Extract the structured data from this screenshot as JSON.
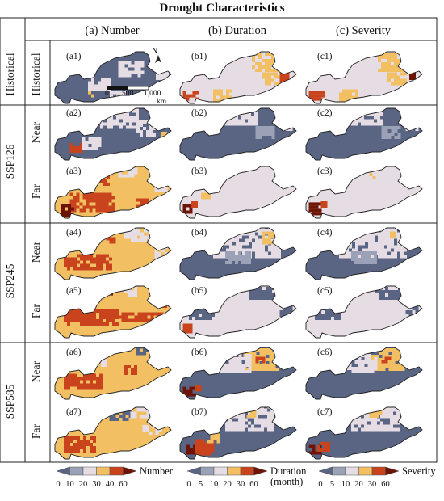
{
  "title": "Drought Characteristics",
  "columns": [
    "(a) Number",
    "(b) Duration",
    "(c) Severity"
  ],
  "scenarios": [
    "Historical",
    "SSP126",
    "SSP245",
    "SSP585"
  ],
  "periods": [
    "Historical",
    "Near",
    "Far",
    "Near",
    "Far",
    "Near",
    "Far"
  ],
  "panels": [
    [
      "(a1)",
      "(b1)",
      "(c1)"
    ],
    [
      "(a2)",
      "(b2)",
      "(c2)"
    ],
    [
      "(a3)",
      "(b3)",
      "(c3)"
    ],
    [
      "(a4)",
      "(b4)",
      "(c4)"
    ],
    [
      "(a5)",
      "(b5)",
      "(c5)"
    ],
    [
      "(a6)",
      "(b6)",
      "(c6)"
    ],
    [
      "(a7)",
      "(b7)",
      "(c7)"
    ]
  ],
  "map_overlays": {
    "north_label": "N",
    "scale_ticks": [
      "0",
      "500",
      "1,000"
    ],
    "scale_unit": "km"
  },
  "legends": [
    {
      "title": "Number",
      "ticks": [
        "0",
        "10",
        "20",
        "30",
        "40",
        "60"
      ],
      "colors": [
        "#5a6584",
        "#9ba1b6",
        "#e6dde4",
        "#f2c063",
        "#c9431d",
        "#6e1406"
      ]
    },
    {
      "title": "Duration\n(month)",
      "ticks": [
        "0",
        "5",
        "10",
        "20",
        "30",
        "60"
      ],
      "colors": [
        "#5a6584",
        "#9ba1b6",
        "#e6dde4",
        "#f2c063",
        "#c9431d",
        "#6e1406"
      ]
    },
    {
      "title": "Severity",
      "ticks": [
        "0",
        "5",
        "10",
        "20",
        "30",
        "60"
      ],
      "colors": [
        "#5a6584",
        "#9ba1b6",
        "#e6dde4",
        "#f2c063",
        "#c9431d",
        "#6e1406"
      ]
    }
  ],
  "colors": {
    "class_0": "#5a6584",
    "class_1": "#9ba1b6",
    "class_2": "#e6dde4",
    "class_3": "#f2c063",
    "class_4": "#c9431d",
    "class_5": "#6e1406"
  },
  "maps": [
    [
      {
        "base": 0,
        "patches": [
          [
            2,
            0.55,
            0.25,
            0.2,
            0.25
          ],
          [
            2,
            0.3,
            0.55,
            0.18,
            0.2
          ],
          [
            2,
            0.48,
            0.78,
            0.12,
            0.12
          ],
          [
            3,
            0.3,
            0.78,
            0.05,
            0.1
          ],
          [
            2,
            0.86,
            0.3,
            0.1,
            0.25
          ]
        ]
      },
      {
        "base": 2,
        "patches": [
          [
            3,
            0.62,
            0.1,
            0.22,
            0.3
          ],
          [
            3,
            0.7,
            0.45,
            0.15,
            0.2
          ],
          [
            3,
            0.3,
            0.75,
            0.15,
            0.18
          ],
          [
            4,
            0.05,
            0.78,
            0.12,
            0.12
          ],
          [
            4,
            0.85,
            0.35,
            0.06,
            0.25
          ]
        ]
      },
      {
        "base": 2,
        "patches": [
          [
            3,
            0.62,
            0.1,
            0.22,
            0.3
          ],
          [
            3,
            0.7,
            0.45,
            0.15,
            0.2
          ],
          [
            3,
            0.3,
            0.75,
            0.15,
            0.18
          ],
          [
            4,
            0.05,
            0.78,
            0.12,
            0.12
          ],
          [
            5,
            0.88,
            0.3,
            0.05,
            0.25
          ],
          [
            4,
            0.85,
            0.1,
            0.06,
            0.2
          ]
        ]
      }
    ],
    [
      {
        "base": 0,
        "patches": [
          [
            2,
            0.4,
            0.05,
            0.3,
            0.4
          ],
          [
            2,
            0.7,
            0.3,
            0.15,
            0.25
          ],
          [
            3,
            0.85,
            0.2,
            0.1,
            0.15
          ],
          [
            4,
            0.15,
            0.7,
            0.1,
            0.15
          ],
          [
            2,
            0.25,
            0.6,
            0.15,
            0.2
          ],
          [
            3,
            0.9,
            0.5,
            0.05,
            0.1
          ]
        ]
      },
      {
        "base": 0,
        "patches": [
          [
            2,
            0.4,
            0.05,
            0.25,
            0.3
          ],
          [
            2,
            0.85,
            0.2,
            0.1,
            0.25
          ],
          [
            1,
            0.65,
            0.4,
            0.15,
            0.2
          ]
        ]
      },
      {
        "base": 0,
        "patches": [
          [
            2,
            0.4,
            0.05,
            0.25,
            0.3
          ],
          [
            2,
            0.85,
            0.2,
            0.1,
            0.25
          ],
          [
            1,
            0.65,
            0.4,
            0.15,
            0.2
          ]
        ]
      }
    ],
    [
      {
        "base": 3,
        "patches": [
          [
            4,
            0.15,
            0.55,
            0.35,
            0.3
          ],
          [
            5,
            0.08,
            0.75,
            0.1,
            0.18
          ],
          [
            4,
            0.4,
            0.2,
            0.08,
            0.2
          ],
          [
            2,
            0.55,
            0.05,
            0.15,
            0.2
          ],
          [
            4,
            0.7,
            0.65,
            0.15,
            0.15
          ],
          [
            2,
            0.85,
            0.3,
            0.1,
            0.2
          ]
        ]
      },
      {
        "base": 2,
        "patches": [
          [
            5,
            0.05,
            0.75,
            0.08,
            0.15
          ],
          [
            4,
            0.12,
            0.7,
            0.05,
            0.1
          ],
          [
            3,
            0.2,
            0.55,
            0.08,
            0.1
          ]
        ]
      },
      {
        "base": 2,
        "patches": [
          [
            5,
            0.05,
            0.72,
            0.1,
            0.18
          ],
          [
            4,
            0.15,
            0.7,
            0.05,
            0.1
          ],
          [
            3,
            0.55,
            0.2,
            0.05,
            0.08
          ]
        ]
      }
    ],
    [
      {
        "base": 3,
        "patches": [
          [
            4,
            0.1,
            0.55,
            0.4,
            0.25
          ],
          [
            2,
            0.6,
            0.05,
            0.2,
            0.25
          ],
          [
            4,
            0.45,
            0.25,
            0.06,
            0.1
          ],
          [
            2,
            0.85,
            0.4,
            0.1,
            0.2
          ]
        ]
      },
      {
        "base": 0,
        "patches": [
          [
            2,
            0.3,
            0.05,
            0.55,
            0.55
          ],
          [
            3,
            0.7,
            0.15,
            0.15,
            0.2
          ],
          [
            1,
            0.4,
            0.5,
            0.2,
            0.2
          ]
        ]
      },
      {
        "base": 0,
        "patches": [
          [
            2,
            0.3,
            0.05,
            0.55,
            0.55
          ],
          [
            3,
            0.72,
            0.15,
            0.05,
            0.1
          ],
          [
            1,
            0.4,
            0.5,
            0.2,
            0.2
          ]
        ]
      }
    ],
    [
      {
        "base": 3,
        "patches": [
          [
            4,
            0.1,
            0.5,
            0.45,
            0.25
          ],
          [
            4,
            0.55,
            0.55,
            0.35,
            0.15
          ],
          [
            5,
            0.4,
            0.08,
            0.1,
            0.12
          ],
          [
            2,
            0.6,
            0.1,
            0.1,
            0.15
          ],
          [
            4,
            0.9,
            0.3,
            0.05,
            0.15
          ]
        ]
      },
      {
        "base": 2,
        "patches": [
          [
            0,
            0.1,
            0.4,
            0.2,
            0.25
          ],
          [
            0,
            0.6,
            0.1,
            0.2,
            0.2
          ],
          [
            0,
            0.85,
            0.4,
            0.1,
            0.2
          ],
          [
            4,
            0.05,
            0.75,
            0.08,
            0.12
          ]
        ]
      },
      {
        "base": 2,
        "patches": [
          [
            0,
            0.1,
            0.4,
            0.2,
            0.25
          ],
          [
            0,
            0.6,
            0.1,
            0.2,
            0.2
          ],
          [
            0,
            0.85,
            0.4,
            0.1,
            0.2
          ]
        ]
      }
    ],
    [
      {
        "base": 3,
        "patches": [
          [
            4,
            0.1,
            0.55,
            0.3,
            0.25
          ],
          [
            5,
            0.85,
            0.2,
            0.08,
            0.1
          ],
          [
            0,
            0.7,
            0.05,
            0.12,
            0.15
          ],
          [
            4,
            0.6,
            0.4,
            0.1,
            0.15
          ],
          [
            2,
            0.3,
            0.2,
            0.15,
            0.2
          ]
        ]
      },
      {
        "base": 0,
        "patches": [
          [
            3,
            0.55,
            0.1,
            0.3,
            0.4
          ],
          [
            2,
            0.35,
            0.2,
            0.25,
            0.3
          ],
          [
            4,
            0.65,
            0.25,
            0.06,
            0.1
          ],
          [
            5,
            0.05,
            0.78,
            0.1,
            0.12
          ],
          [
            4,
            0.15,
            0.75,
            0.05,
            0.1
          ]
        ]
      },
      {
        "base": 0,
        "patches": [
          [
            3,
            0.55,
            0.1,
            0.3,
            0.4
          ],
          [
            2,
            0.35,
            0.2,
            0.25,
            0.3
          ],
          [
            4,
            0.65,
            0.25,
            0.06,
            0.1
          ]
        ]
      }
    ],
    [
      {
        "base": 3,
        "patches": [
          [
            4,
            0.1,
            0.6,
            0.25,
            0.25
          ],
          [
            0,
            0.45,
            0.1,
            0.2,
            0.2
          ],
          [
            2,
            0.65,
            0.05,
            0.2,
            0.2
          ],
          [
            2,
            0.75,
            0.4,
            0.15,
            0.15
          ]
        ]
      },
      {
        "base": 0,
        "patches": [
          [
            2,
            0.4,
            0.05,
            0.4,
            0.45
          ],
          [
            3,
            0.55,
            0.1,
            0.1,
            0.15
          ],
          [
            5,
            0.08,
            0.75,
            0.1,
            0.15
          ],
          [
            4,
            0.15,
            0.65,
            0.15,
            0.25
          ],
          [
            3,
            0.25,
            0.55,
            0.1,
            0.15
          ]
        ]
      },
      {
        "base": 0,
        "patches": [
          [
            2,
            0.4,
            0.05,
            0.4,
            0.45
          ],
          [
            3,
            0.55,
            0.1,
            0.1,
            0.15
          ],
          [
            5,
            0.05,
            0.75,
            0.1,
            0.15
          ],
          [
            4,
            0.12,
            0.7,
            0.1,
            0.15
          ]
        ]
      }
    ]
  ]
}
